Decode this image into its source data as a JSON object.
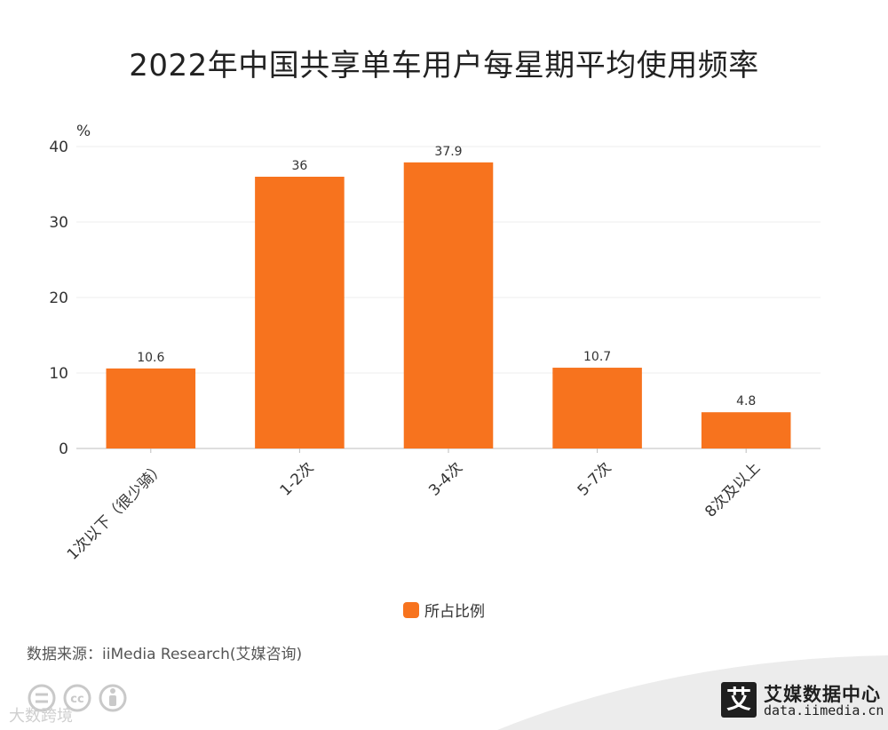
{
  "title": "2022年中国共享单车用户每星期平均使用频率",
  "chart_data": {
    "type": "bar",
    "title": "2022年中国共享单车用户每星期平均使用频率",
    "y_unit": "%",
    "categories": [
      "1次以下（很少骑）",
      "1-2次",
      "3-4次",
      "5-7次",
      "8次及以上"
    ],
    "series": [
      {
        "name": "所占比例",
        "values": [
          10.6,
          36,
          37.9,
          10.7,
          4.8
        ],
        "color": "#F7731E"
      }
    ],
    "ylim": [
      0,
      40
    ],
    "yticks": [
      0,
      10,
      20,
      30,
      40
    ],
    "grid": true,
    "legend_position": "bottom-center"
  },
  "legend": {
    "label": "所占比例",
    "color": "#F7731E"
  },
  "source": "数据来源：iiMedia Research(艾媒咨询)",
  "watermark": {
    "text": "大数跨境",
    "icons": [
      "cc-equals-icon",
      "cc-icon",
      "cc-person-icon"
    ]
  },
  "brand": {
    "mark": "艾",
    "name": "艾媒数据中心",
    "url": "data.iimedia.cn"
  }
}
